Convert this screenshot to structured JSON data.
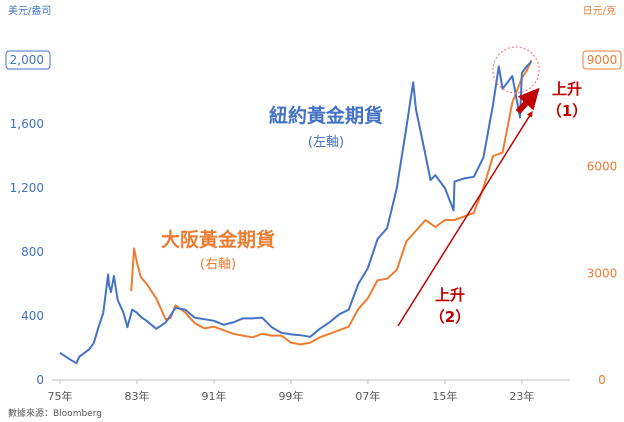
{
  "chart_data": {
    "type": "line",
    "left_axis": {
      "unit_label": "美元/盎司",
      "ticks": [
        "0",
        "400",
        "800",
        "1,200",
        "1,600",
        "2,000"
      ],
      "tick_values": [
        0,
        400,
        800,
        1200,
        1600,
        2000
      ],
      "range": [
        0,
        2000
      ],
      "boxed_tick": "2,000",
      "color": "#4472c4"
    },
    "right_axis": {
      "unit_label": "日元/克",
      "ticks": [
        "0",
        "3000",
        "6000",
        "9000"
      ],
      "tick_values": [
        0,
        3000,
        6000,
        9000
      ],
      "range": [
        0,
        9000
      ],
      "boxed_tick": "9000",
      "color": "#ed7d31"
    },
    "x_axis": {
      "ticks": [
        "75年",
        "83年",
        "91年",
        "99年",
        "07年",
        "15年",
        "23年"
      ],
      "tick_years": [
        1975,
        1983,
        1991,
        1999,
        2007,
        2015,
        2023
      ],
      "range": [
        1975,
        2028
      ]
    },
    "series": [
      {
        "name": "紐約黃金期貨",
        "sub": "(左軸)",
        "axis": "left",
        "color": "#4472c4",
        "x": [
          1975,
          1976,
          1976.7,
          1977,
          1978,
          1978.5,
          1979,
          1979.5,
          1980,
          1980.1,
          1980.3,
          1980.6,
          1981,
          1981.6,
          1982,
          1982.5,
          1983,
          1983.5,
          1984,
          1985,
          1986,
          1987,
          1988,
          1989,
          1990,
          1991,
          1992,
          1993,
          1994,
          1995,
          1996,
          1997,
          1998,
          1999,
          2000,
          2001,
          2002,
          2003,
          2004,
          2005,
          2006,
          2007,
          2008,
          2009,
          2010,
          2011,
          2011.7,
          2012,
          2013,
          2013.5,
          2014,
          2015,
          2015.9,
          2016,
          2017,
          2018,
          2019,
          2020,
          2020.6,
          2021,
          2022,
          2022.8,
          2023,
          2023.5,
          2024
        ],
        "y": [
          170,
          130,
          105,
          145,
          190,
          230,
          330,
          420,
          660,
          590,
          550,
          650,
          500,
          420,
          330,
          440,
          420,
          390,
          370,
          320,
          360,
          450,
          440,
          390,
          380,
          370,
          345,
          360,
          385,
          385,
          390,
          330,
          295,
          285,
          280,
          270,
          320,
          360,
          410,
          440,
          600,
          700,
          880,
          950,
          1200,
          1580,
          1860,
          1690,
          1400,
          1250,
          1280,
          1200,
          1060,
          1240,
          1260,
          1270,
          1390,
          1720,
          1960,
          1820,
          1900,
          1640,
          1920,
          1960,
          1990
        ]
      },
      {
        "name": "大阪黃金期貨",
        "sub": "(右軸)",
        "axis": "right",
        "color": "#ed7d31",
        "x": [
          1982.4,
          1982.7,
          1983,
          1983.4,
          1984,
          1985,
          1986,
          1986.5,
          1987,
          1988,
          1989,
          1990,
          1991,
          1992,
          1993,
          1994,
          1995,
          1996,
          1997,
          1998,
          1999,
          2000,
          2001,
          2002,
          2003,
          2004,
          2005,
          2006,
          2007,
          2008,
          2009,
          2010,
          2011,
          2012,
          2013,
          2014,
          2015,
          2016,
          2017,
          2018,
          2019,
          2020,
          2021,
          2022,
          2023,
          2023.5,
          2024
        ],
        "y": [
          2500,
          3700,
          3300,
          2900,
          2700,
          2300,
          1700,
          1750,
          2100,
          1900,
          1600,
          1450,
          1500,
          1400,
          1300,
          1250,
          1200,
          1300,
          1250,
          1250,
          1050,
          1000,
          1050,
          1200,
          1300,
          1400,
          1500,
          2000,
          2300,
          2800,
          2850,
          3100,
          3900,
          4200,
          4500,
          4300,
          4500,
          4500,
          4600,
          4700,
          5400,
          6300,
          6400,
          7800,
          8500,
          8700,
          9000
        ]
      }
    ],
    "annotations": {
      "rise_1": [
        "上升",
        "（1）"
      ],
      "rise_2": [
        "上升",
        "（2）"
      ]
    }
  },
  "source": "數據來源：Bloomberg"
}
